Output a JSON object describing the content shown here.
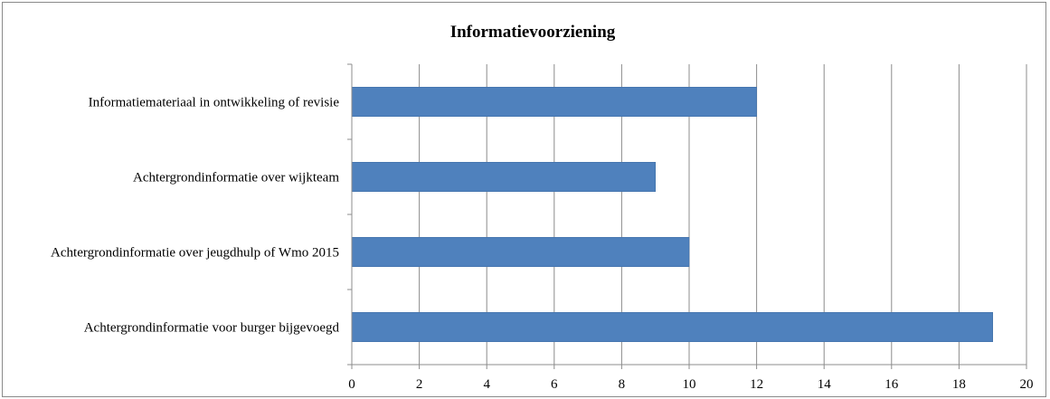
{
  "chart_data": {
    "type": "bar",
    "orientation": "horizontal",
    "title": "Informatievoorziening",
    "categories": [
      "Informatiemateriaal in ontwikkeling of revisie",
      "Achtergrondinformatie over wijkteam",
      "Achtergrondinformatie over jeugdhulp of Wmo 2015",
      "Achtergrondinformatie voor burger bijgevoegd"
    ],
    "values": [
      12,
      9,
      10,
      19
    ],
    "xlim": [
      0,
      20
    ],
    "xticks": [
      0,
      2,
      4,
      6,
      8,
      10,
      12,
      14,
      16,
      18,
      20
    ],
    "grid": "vertical",
    "legend": "none",
    "colors": {
      "bar": "#4f81bd",
      "grid": "#8c8c8c",
      "axis": "#8c8c8c"
    }
  }
}
